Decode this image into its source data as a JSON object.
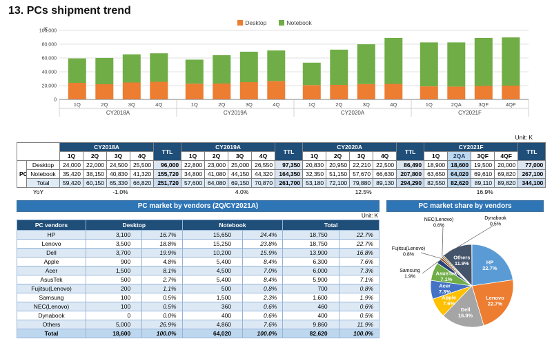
{
  "page": {
    "title": "13. PCs shipment trend"
  },
  "units": {
    "axis": "K",
    "chart": "Unit: K",
    "vendors": "Unit: K"
  },
  "theme": {
    "header_dark": "#1F4E79",
    "panel_blue": "#2E75B6",
    "highlight": "#BDD7EE",
    "ttl_fill": "#DCE6F1",
    "total_fill": "#DEEBF7",
    "band_fill": "#DCE9F5",
    "vendor_border": "#95B3D7"
  },
  "chart_data": [
    {
      "id": "shipment",
      "type": "bar",
      "stacked": true,
      "title": "PCs shipment trend",
      "ylabel": "K",
      "ylim": [
        0,
        100000
      ],
      "ytick_step": 20000,
      "yticks": [
        "0",
        "20,000",
        "40,000",
        "60,000",
        "80,000",
        "100,000"
      ],
      "grid": true,
      "legend_position": "top",
      "categories": [
        "1Q",
        "2Q",
        "3Q",
        "4Q",
        "1Q",
        "2Q",
        "3Q",
        "4Q",
        "1Q",
        "2Q",
        "3Q",
        "4Q",
        "1Q",
        "2QA",
        "3QF",
        "4QF"
      ],
      "group_labels": [
        "CY2018A",
        "CY2019A",
        "CY2020A",
        "CY2021F"
      ],
      "series": [
        {
          "name": "Desktop",
          "color": "#ED7D31",
          "values": [
            24000,
            22000,
            24500,
            25500,
            22800,
            23000,
            25000,
            26550,
            20830,
            20950,
            22210,
            22500,
            18900,
            18600,
            19500,
            20000
          ]
        },
        {
          "name": "Notebook",
          "color": "#70AD47",
          "values": [
            35420,
            38150,
            40830,
            41320,
            34800,
            41080,
            44150,
            44320,
            32350,
            51150,
            57670,
            66630,
            63650,
            64020,
            69610,
            69820
          ]
        }
      ]
    },
    {
      "id": "share",
      "type": "pie",
      "title": "PC market share by vendors",
      "slices": [
        {
          "label": "HP",
          "pct": 22.7,
          "color": "#5B9BD5",
          "label_pos": "inside"
        },
        {
          "label": "Lenovo",
          "pct": 22.7,
          "color": "#ED7D31",
          "label_pos": "inside"
        },
        {
          "label": "Dell",
          "pct": 16.8,
          "color": "#A5A5A5",
          "label_pos": "inside"
        },
        {
          "label": "Apple",
          "pct": 7.6,
          "color": "#FFC000",
          "label_pos": "inside"
        },
        {
          "label": "Acer",
          "pct": 7.3,
          "color": "#4472C4",
          "label_pos": "inside"
        },
        {
          "label": "AsusTek",
          "pct": 7.1,
          "color": "#70AD47",
          "label_pos": "inside"
        },
        {
          "label": "Samsung",
          "pct": 1.9,
          "color": "#264478",
          "label_pos": "outside"
        },
        {
          "label": "Fujitsu(Lenovo)",
          "pct": 0.8,
          "color": "#9E480E",
          "label_pos": "outside"
        },
        {
          "label": "NEC(Lenovo)",
          "pct": 0.6,
          "color": "#636363",
          "label_pos": "outside"
        },
        {
          "label": "Dynabook",
          "pct": 0.5,
          "color": "#997300",
          "label_pos": "outside"
        },
        {
          "label": "Others",
          "pct": 11.9,
          "color": "#44546A",
          "label_pos": "inside"
        }
      ]
    }
  ],
  "shipment_table": {
    "group_label": "PC",
    "ttl_label": "TTL",
    "years": [
      {
        "label": "CY2018A",
        "quarters": [
          "1Q",
          "2Q",
          "3Q",
          "4Q"
        ]
      },
      {
        "label": "CY2019A",
        "quarters": [
          "1Q",
          "2Q",
          "3Q",
          "4Q"
        ]
      },
      {
        "label": "CY2020A",
        "quarters": [
          "1Q",
          "2Q",
          "3Q",
          "4Q"
        ]
      },
      {
        "label": "CY2021F",
        "quarters": [
          "1Q",
          "2QA",
          "3QF",
          "4QF"
        ],
        "highlight": 1
      }
    ],
    "rows": [
      {
        "label": "Desktop",
        "years": [
          {
            "cells": [
              "24,000",
              "22,000",
              "24,500",
              "25,500"
            ],
            "ttl": "96,000"
          },
          {
            "cells": [
              "22,800",
              "23,000",
              "25,000",
              "26,550"
            ],
            "ttl": "97,350"
          },
          {
            "cells": [
              "20,830",
              "20,950",
              "22,210",
              "22,500"
            ],
            "ttl": "86,490"
          },
          {
            "cells": [
              "18,900",
              "18,600",
              "19,500",
              "20,000"
            ],
            "ttl": "77,000"
          }
        ]
      },
      {
        "label": "Notebook",
        "years": [
          {
            "cells": [
              "35,420",
              "38,150",
              "40,830",
              "41,320"
            ],
            "ttl": "155,720"
          },
          {
            "cells": [
              "34,800",
              "41,080",
              "44,150",
              "44,320"
            ],
            "ttl": "164,350"
          },
          {
            "cells": [
              "32,350",
              "51,150",
              "57,670",
              "66,630"
            ],
            "ttl": "207,800"
          },
          {
            "cells": [
              "63,650",
              "64,020",
              "69,610",
              "69,820"
            ],
            "ttl": "267,100"
          }
        ]
      },
      {
        "label": "Total",
        "is_total": true,
        "years": [
          {
            "cells": [
              "59,420",
              "60,150",
              "65,330",
              "66,820"
            ],
            "ttl": "251,720"
          },
          {
            "cells": [
              "57,600",
              "64,080",
              "69,150",
              "70,870"
            ],
            "ttl": "261,700"
          },
          {
            "cells": [
              "53,180",
              "72,100",
              "79,880",
              "89,130"
            ],
            "ttl": "294,290"
          },
          {
            "cells": [
              "82,550",
              "82,620",
              "89,110",
              "89,820"
            ],
            "ttl": "344,100"
          }
        ]
      }
    ],
    "yoy": {
      "label": "YoY",
      "values": [
        "-1.0%",
        "4.0%",
        "12.5%",
        "16.9%"
      ]
    }
  },
  "vendors_table": {
    "title": "PC market by vendors (2Q/CY2021A)",
    "headers": {
      "vendor": "PC vendors",
      "desktop": "Desktop",
      "notebook": "Notebook",
      "total": "Total"
    },
    "rows": [
      {
        "vendor": "HP",
        "desktop": "3,100",
        "desktop_pct": "16.7%",
        "notebook": "15,650",
        "notebook_pct": "24.4%",
        "total": "18,750",
        "total_pct": "22.7%"
      },
      {
        "vendor": "Lenovo",
        "desktop": "3,500",
        "desktop_pct": "18.8%",
        "notebook": "15,250",
        "notebook_pct": "23.8%",
        "total": "18,750",
        "total_pct": "22.7%"
      },
      {
        "vendor": "Dell",
        "desktop": "3,700",
        "desktop_pct": "19.9%",
        "notebook": "10,200",
        "notebook_pct": "15.9%",
        "total": "13,900",
        "total_pct": "16.8%"
      },
      {
        "vendor": "Apple",
        "desktop": "900",
        "desktop_pct": "4.8%",
        "notebook": "5,400",
        "notebook_pct": "8.4%",
        "total": "6,300",
        "total_pct": "7.6%"
      },
      {
        "vendor": "Acer",
        "desktop": "1,500",
        "desktop_pct": "8.1%",
        "notebook": "4,500",
        "notebook_pct": "7.0%",
        "total": "6,000",
        "total_pct": "7.3%"
      },
      {
        "vendor": "AsusTek",
        "desktop": "500",
        "desktop_pct": "2.7%",
        "notebook": "5,400",
        "notebook_pct": "8.4%",
        "total": "5,900",
        "total_pct": "7.1%"
      },
      {
        "vendor": "Fujitsu(Lenovo)",
        "desktop": "200",
        "desktop_pct": "1.1%",
        "notebook": "500",
        "notebook_pct": "0.8%",
        "total": "700",
        "total_pct": "0.8%"
      },
      {
        "vendor": "Samsung",
        "desktop": "100",
        "desktop_pct": "0.5%",
        "notebook": "1,500",
        "notebook_pct": "2.3%",
        "total": "1,600",
        "total_pct": "1.9%"
      },
      {
        "vendor": "NEC(Lenovo)",
        "desktop": "100",
        "desktop_pct": "0.5%",
        "notebook": "360",
        "notebook_pct": "0.6%",
        "total": "460",
        "total_pct": "0.6%"
      },
      {
        "vendor": "Dynabook",
        "desktop": "0",
        "desktop_pct": "0.0%",
        "notebook": "400",
        "notebook_pct": "0.6%",
        "total": "400",
        "total_pct": "0.5%"
      },
      {
        "vendor": "Others",
        "desktop": "5,000",
        "desktop_pct": "26.9%",
        "notebook": "4,860",
        "notebook_pct": "7.6%",
        "total": "9,860",
        "total_pct": "11.9%"
      }
    ],
    "total_row": {
      "vendor": "Total",
      "desktop": "18,600",
      "desktop_pct": "100.0%",
      "notebook": "64,020",
      "notebook_pct": "100.0%",
      "total": "82,620",
      "total_pct": "100.0%"
    }
  }
}
